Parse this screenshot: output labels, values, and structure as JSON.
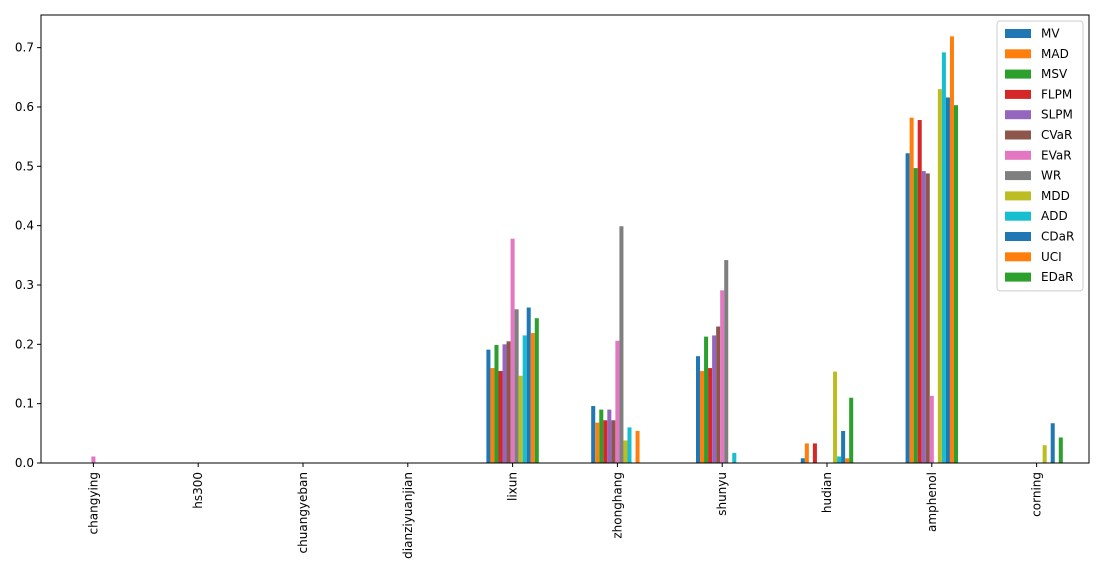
{
  "chart_data": {
    "type": "bar",
    "title": "",
    "xlabel": "",
    "ylabel": "",
    "ylim": [
      0,
      0.755
    ],
    "yticks": [
      "0.0",
      "0.1",
      "0.2",
      "0.3",
      "0.4",
      "0.5",
      "0.6",
      "0.7"
    ],
    "grid": false,
    "legend_position": "top-right",
    "categories": [
      "changying",
      "hs300",
      "chuangyeban",
      "dianziyuanjian",
      "lixun",
      "zhonghang",
      "shunyu",
      "hudian",
      "amphenol",
      "corning"
    ],
    "series": [
      {
        "name": "MV",
        "color": "#1f77b4",
        "values": [
          0,
          0,
          0,
          0,
          0.191,
          0.096,
          0.18,
          0.008,
          0.522,
          0
        ]
      },
      {
        "name": "MAD",
        "color": "#ff7f0e",
        "values": [
          0,
          0,
          0,
          0,
          0.16,
          0.068,
          0.155,
          0.033,
          0.582,
          0
        ]
      },
      {
        "name": "MSV",
        "color": "#2ca02c",
        "values": [
          0,
          0,
          0,
          0,
          0.199,
          0.09,
          0.213,
          0,
          0.497,
          0
        ]
      },
      {
        "name": "FLPM",
        "color": "#d62728",
        "values": [
          0,
          0,
          0,
          0,
          0.155,
          0.072,
          0.16,
          0.033,
          0.578,
          0
        ]
      },
      {
        "name": "SLPM",
        "color": "#9467bd",
        "values": [
          0,
          0,
          0,
          0,
          0.2,
          0.09,
          0.215,
          0,
          0.492,
          0
        ]
      },
      {
        "name": "CVaR",
        "color": "#8c564b",
        "values": [
          0,
          0,
          0,
          0,
          0.205,
          0.072,
          0.23,
          0,
          0.488,
          0
        ]
      },
      {
        "name": "EVaR",
        "color": "#e377c2",
        "values": [
          0.011,
          0,
          0,
          0,
          0.378,
          0.206,
          0.291,
          0,
          0.113,
          0
        ]
      },
      {
        "name": "WR",
        "color": "#7f7f7f",
        "values": [
          0,
          0,
          0,
          0,
          0.259,
          0.399,
          0.342,
          0,
          0,
          0
        ]
      },
      {
        "name": "MDD",
        "color": "#bcbd22",
        "values": [
          0,
          0,
          0,
          0,
          0.147,
          0.038,
          0,
          0.154,
          0.63,
          0.03
        ]
      },
      {
        "name": "ADD",
        "color": "#17becf",
        "values": [
          0,
          0,
          0,
          0,
          0.215,
          0.06,
          0.017,
          0.011,
          0.692,
          0
        ]
      },
      {
        "name": "CDaR",
        "color": "#1f77b4",
        "values": [
          0,
          0,
          0,
          0,
          0.262,
          0,
          0,
          0.054,
          0.616,
          0.067
        ]
      },
      {
        "name": "UCI",
        "color": "#ff7f0e",
        "values": [
          0,
          0,
          0,
          0,
          0.219,
          0.054,
          0,
          0.008,
          0.719,
          0
        ]
      },
      {
        "name": "EDaR",
        "color": "#2ca02c",
        "values": [
          0,
          0,
          0,
          0,
          0.244,
          0,
          0,
          0.11,
          0.603,
          0.043
        ]
      }
    ]
  }
}
